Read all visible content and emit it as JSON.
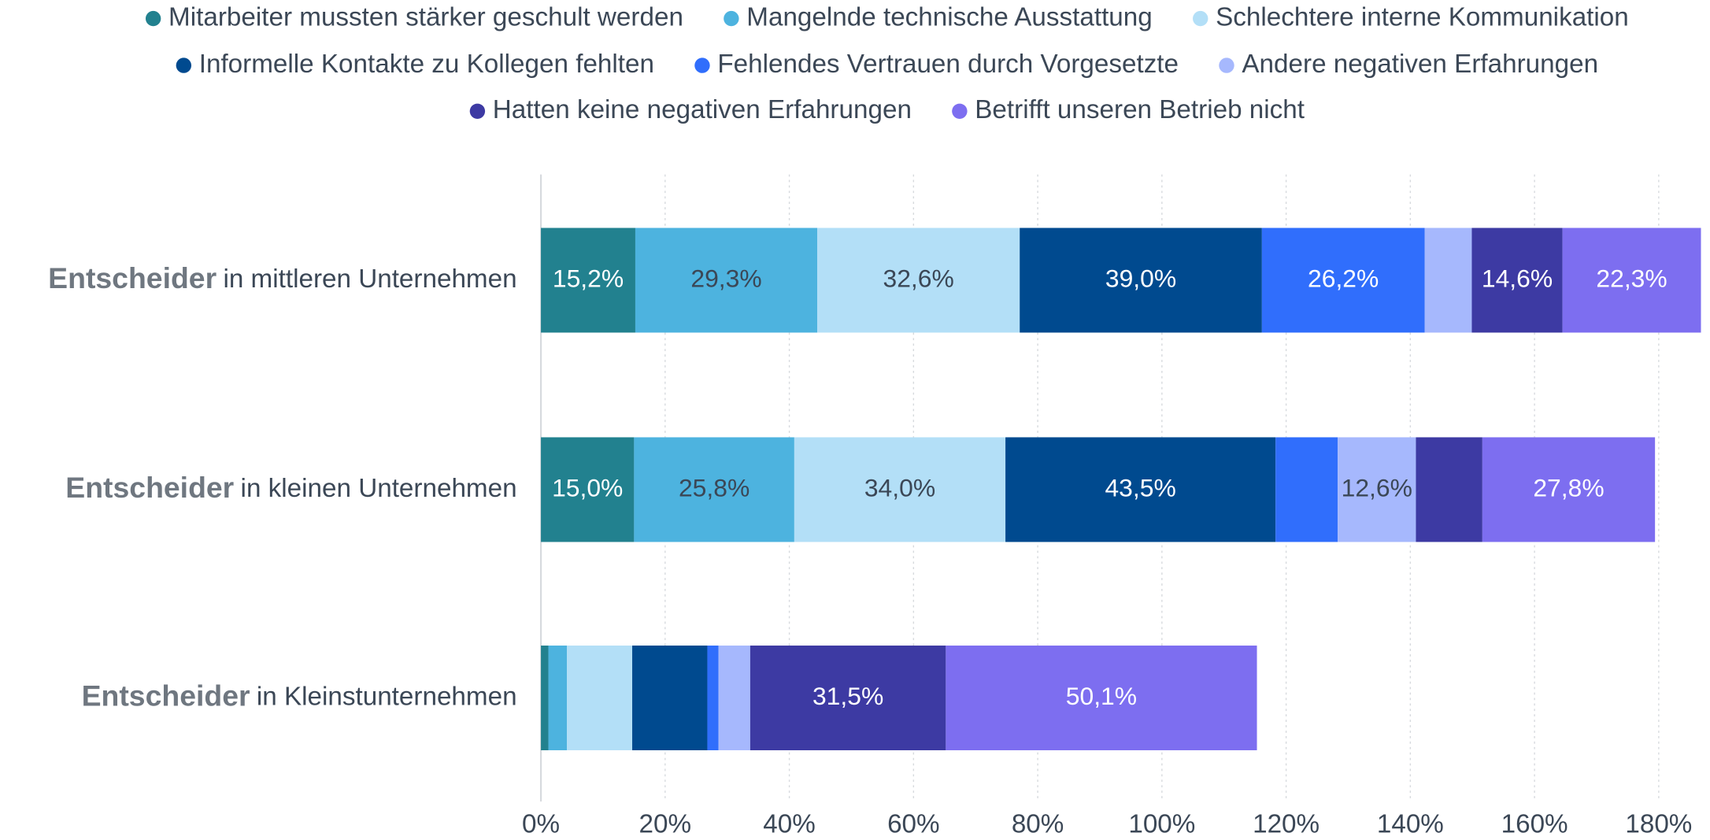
{
  "chart_data": {
    "type": "stacked-bar-horizontal",
    "categories": [
      {
        "prefix": "Entscheider",
        "label": "in mittleren Unternehmen"
      },
      {
        "prefix": "Entscheider",
        "label": "in kleinen Unternehmen"
      },
      {
        "prefix": "Entscheider",
        "label": "in Kleinstunternehmen"
      }
    ],
    "series": [
      {
        "name": "Mitarbeiter mussten stärker geschult werden",
        "color": "#22818f",
        "values": [
          15.2,
          15.0,
          1.2
        ],
        "value_labels": [
          "15,2%",
          "15,0%",
          null
        ]
      },
      {
        "name": "Mangelnde technische Ausstattung",
        "color": "#4db3df",
        "values": [
          29.3,
          25.8,
          3.0
        ],
        "value_labels": [
          "29,3%",
          "25,8%",
          null
        ]
      },
      {
        "name": "Schlechtere interne Kommunikation",
        "color": "#b3dff7",
        "values": [
          32.6,
          34.0,
          10.5
        ],
        "value_labels": [
          "32,6%",
          "34,0%",
          null
        ]
      },
      {
        "name": "Informelle Kontakte zu Kollegen fehlten",
        "color": "#004a8f",
        "values": [
          39.0,
          43.5,
          12.1
        ],
        "value_labels": [
          "39,0%",
          "43,5%",
          null
        ]
      },
      {
        "name": "Fehlendes Vertrauen durch Vorgesetzte",
        "color": "#306efc",
        "values": [
          26.2,
          10.0,
          1.8
        ],
        "value_labels": [
          "26,2%",
          null,
          null
        ]
      },
      {
        "name": "Andere negativen Erfahrungen",
        "color": "#a6b8fd",
        "values": [
          7.6,
          12.6,
          5.1
        ],
        "value_labels": [
          null,
          "12,6%",
          null
        ]
      },
      {
        "name": "Hatten keine negativen Erfahrungen",
        "color": "#3d3aa3",
        "values": [
          14.6,
          10.7,
          31.5
        ],
        "value_labels": [
          "14,6%",
          null,
          "31,5%"
        ]
      },
      {
        "name": "Betrifft unseren Betrieb nicht",
        "color": "#7d6ef0",
        "values": [
          22.3,
          27.8,
          50.1
        ],
        "value_labels": [
          "22,3%",
          "27,8%",
          "50,1%"
        ]
      }
    ],
    "xlim": [
      0,
      180
    ],
    "xticks": [
      {
        "value": 0,
        "label": "0%"
      },
      {
        "value": 20,
        "label": "20%"
      },
      {
        "value": 40,
        "label": "40%"
      },
      {
        "value": 60,
        "label": "60%"
      },
      {
        "value": 80,
        "label": "80%"
      },
      {
        "value": 100,
        "label": "100%"
      },
      {
        "value": 120,
        "label": "120%"
      },
      {
        "value": 140,
        "label": "140%"
      },
      {
        "value": 160,
        "label": "160%"
      },
      {
        "value": 180,
        "label": "180%"
      }
    ],
    "grid": true,
    "legend": "top"
  }
}
